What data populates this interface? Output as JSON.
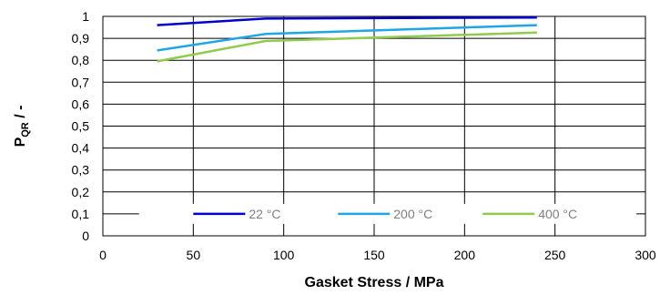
{
  "chart_data": {
    "type": "line",
    "title": "",
    "xlabel": "Gasket Stress / MPa",
    "ylabel_main": "P",
    "ylabel_sub": "QR",
    "ylabel_suffix": " / -",
    "xlim": [
      0,
      300
    ],
    "ylim": [
      0,
      1
    ],
    "x_ticks": [
      0,
      50,
      100,
      150,
      200,
      250,
      300
    ],
    "x_tick_labels": [
      "0",
      "50",
      "100",
      "150",
      "200",
      "250",
      "300"
    ],
    "y_ticks": [
      0,
      0.1,
      0.2,
      0.3,
      0.4,
      0.5,
      0.6,
      0.7,
      0.8,
      0.9,
      1
    ],
    "y_tick_labels": [
      "0",
      "0,1",
      "0,2",
      "0,3",
      "0,4",
      "0,5",
      "0,6",
      "0,7",
      "0,8",
      "0,9",
      "1"
    ],
    "grid": true,
    "legend_position": "bottom-inside",
    "series": [
      {
        "name": "22 °C",
        "color": "#0000cc",
        "x": [
          30,
          90,
          240
        ],
        "y": [
          0.96,
          0.99,
          0.995
        ]
      },
      {
        "name": "200 °C",
        "color": "#1ea6e6",
        "x": [
          30,
          90,
          240
        ],
        "y": [
          0.845,
          0.92,
          0.96
        ]
      },
      {
        "name": "400 °C",
        "color": "#8fcc4c",
        "x": [
          30,
          90,
          240
        ],
        "y": [
          0.795,
          0.888,
          0.926
        ]
      }
    ]
  }
}
